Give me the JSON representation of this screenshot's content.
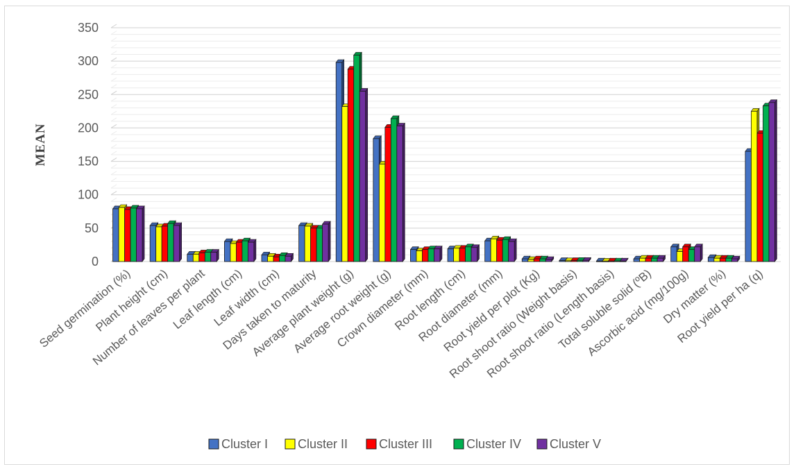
{
  "chart_data": {
    "type": "bar",
    "title": "",
    "xlabel": "",
    "ylabel": "MEAN",
    "ylim": [
      0,
      350
    ],
    "yticks": [
      0,
      50,
      100,
      150,
      200,
      250,
      300,
      350
    ],
    "grid": true,
    "legend_position": "bottom",
    "style": "3d-clustered-column",
    "categories": [
      "Seed germination (%)",
      "Plant height (cm)",
      "Number of leaves per plant",
      "Leaf length (cm)",
      "Leaf width (cm)",
      "Days taken to maturity",
      "Average plant weight (g)",
      "Average root weight (g)",
      "Crown diameter (mm)",
      "Root length (cm)",
      "Root diameter (mm)",
      "Root yield per plot (Kg)",
      "Root shoot ratio (Weight basis)",
      "Root shoot ratio (Length basis)",
      "Total soluble solid (ºB)",
      "Ascorbic acid (mg/100g)",
      "Dry matter (%)",
      "Root yield per ha (q)"
    ],
    "series": [
      {
        "name": "Cluster I",
        "color": "#4472C4",
        "values": [
          79,
          54,
          11,
          30,
          10,
          54,
          298,
          184,
          18,
          19,
          31,
          4,
          1.5,
          0.8,
          4,
          22,
          6,
          165
        ]
      },
      {
        "name": "Cluster II",
        "color": "#FFFF00",
        "values": [
          81,
          52,
          11,
          27,
          8,
          53,
          232,
          146,
          16,
          20,
          34,
          3,
          1.2,
          0.7,
          5,
          15,
          5,
          225
        ]
      },
      {
        "name": "Cluster III",
        "color": "#FF0000",
        "values": [
          78,
          53,
          13,
          29,
          7,
          50,
          288,
          201,
          18,
          20,
          32,
          4,
          1.5,
          0.8,
          5,
          22,
          5,
          192
        ]
      },
      {
        "name": "Cluster IV",
        "color": "#00B050",
        "values": [
          80,
          57,
          14,
          31,
          9,
          50,
          309,
          214,
          19,
          22,
          33,
          4,
          1.8,
          0.9,
          5,
          18,
          5,
          233
        ]
      },
      {
        "name": "Cluster V",
        "color": "#7030A0",
        "values": [
          79,
          54,
          14,
          29,
          8,
          56,
          255,
          203,
          19,
          21,
          30,
          3,
          1.8,
          0.8,
          5,
          22,
          4,
          238
        ]
      }
    ]
  }
}
